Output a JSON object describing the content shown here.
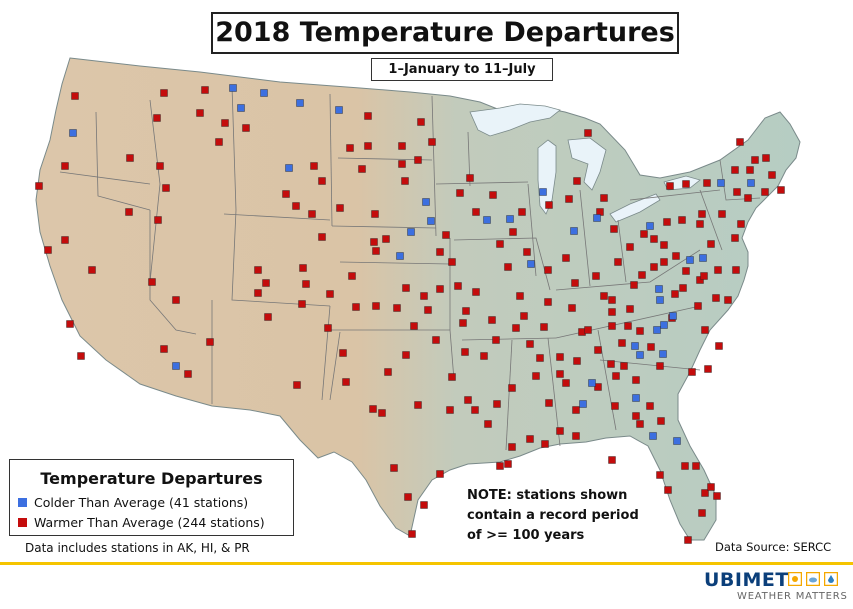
{
  "title": "2018 Temperature Departures",
  "subtitle": "1–January to 11–July",
  "legend": {
    "title": "Temperature Departures",
    "items": [
      {
        "label": "Colder Than Average (41 stations)",
        "color": "#3c6fe0"
      },
      {
        "label": "Warmer Than Average (244 stations)",
        "color": "#c40c0c"
      }
    ]
  },
  "footnote": "Data includes stations in AK, HI, & PR",
  "note_lines": [
    "NOTE: stations shown",
    "contain a record period",
    "of >= 100 years"
  ],
  "data_source": "Data Source: SERCC",
  "brand": {
    "name": "UBIMET",
    "tagline": "WEATHER MATTERS",
    "accent": "#f5c400",
    "icon_names": [
      "sun-icon",
      "cloud-icon",
      "drop-icon"
    ]
  },
  "colors": {
    "colder": "#3c6fe0",
    "warmer": "#c40c0c",
    "land_west": "#e1c9ab",
    "land_east": "#b9cfc2",
    "water": "#e9f3f9"
  }
}
